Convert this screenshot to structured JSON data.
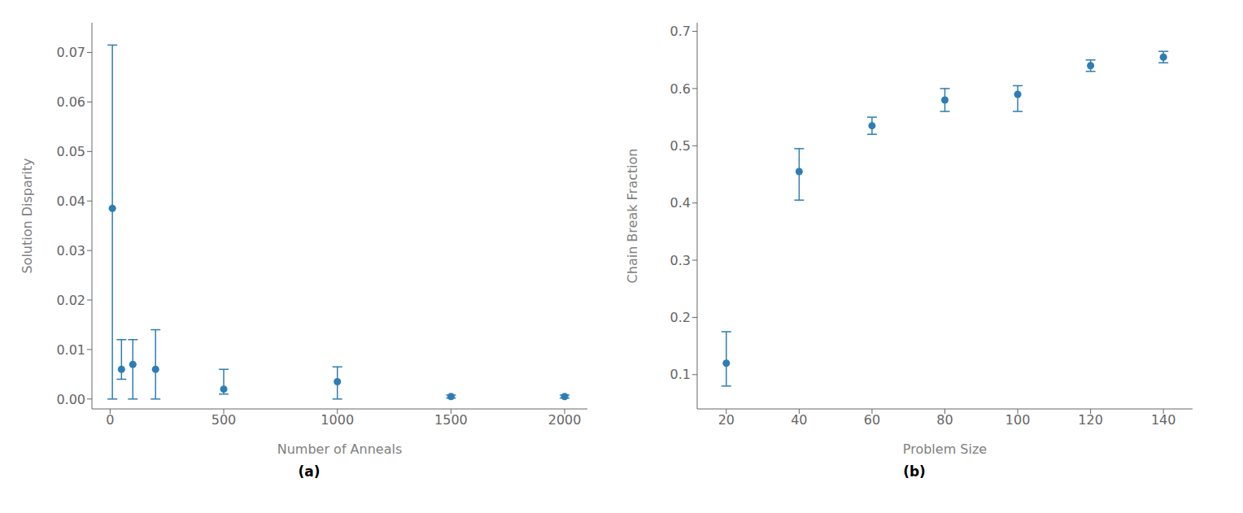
{
  "chart_data": [
    {
      "type": "scatter",
      "title": "(a)",
      "x_label": "Number of Anneals",
      "y_label": "Solution Disparity",
      "x": [
        10,
        50,
        100,
        200,
        500,
        1000,
        1500,
        2000
      ],
      "values": [
        0.0385,
        0.006,
        0.007,
        0.006,
        0.002,
        0.0035,
        0.0005,
        0.0005
      ],
      "error_lower": [
        0.0385,
        0.002,
        0.007,
        0.006,
        0.001,
        0.0035,
        0.0003,
        0.0003
      ],
      "error_upper": [
        0.033,
        0.006,
        0.005,
        0.008,
        0.004,
        0.003,
        0.0003,
        0.0003
      ],
      "color": "#2e7db5",
      "marker": "o",
      "xlim": [
        -80,
        2100
      ],
      "xticks": [
        0,
        500,
        1000,
        1500,
        2000
      ],
      "ylim": [
        -0.002,
        0.076
      ],
      "yticks": [
        {
          "value": 0,
          "label": "0.00"
        },
        0.01,
        0.02,
        0.03,
        0.04,
        0.05,
        0.06,
        0.07
      ],
      "grid": false
    },
    {
      "type": "scatter",
      "title": "(b)",
      "x_label": "Problem Size",
      "y_label": "Chain Break Fraction",
      "x": [
        20,
        40,
        60,
        80,
        100,
        120,
        140
      ],
      "values": [
        0.12,
        0.455,
        0.535,
        0.58,
        0.59,
        0.64,
        0.655
      ],
      "error_lower": [
        0.04,
        0.05,
        0.015,
        0.02,
        0.03,
        0.01,
        0.01
      ],
      "error_upper": [
        0.055,
        0.04,
        0.015,
        0.02,
        0.015,
        0.01,
        0.01
      ],
      "color": "#2e7db5",
      "marker": "o",
      "xlim": [
        12,
        148
      ],
      "xticks": [
        20,
        40,
        60,
        80,
        100,
        120,
        140
      ],
      "ylim": [
        0.04,
        0.715
      ],
      "yticks": [
        0.1,
        0.2,
        0.3,
        0.4,
        0.5,
        0.6,
        0.7
      ],
      "grid": false
    }
  ]
}
